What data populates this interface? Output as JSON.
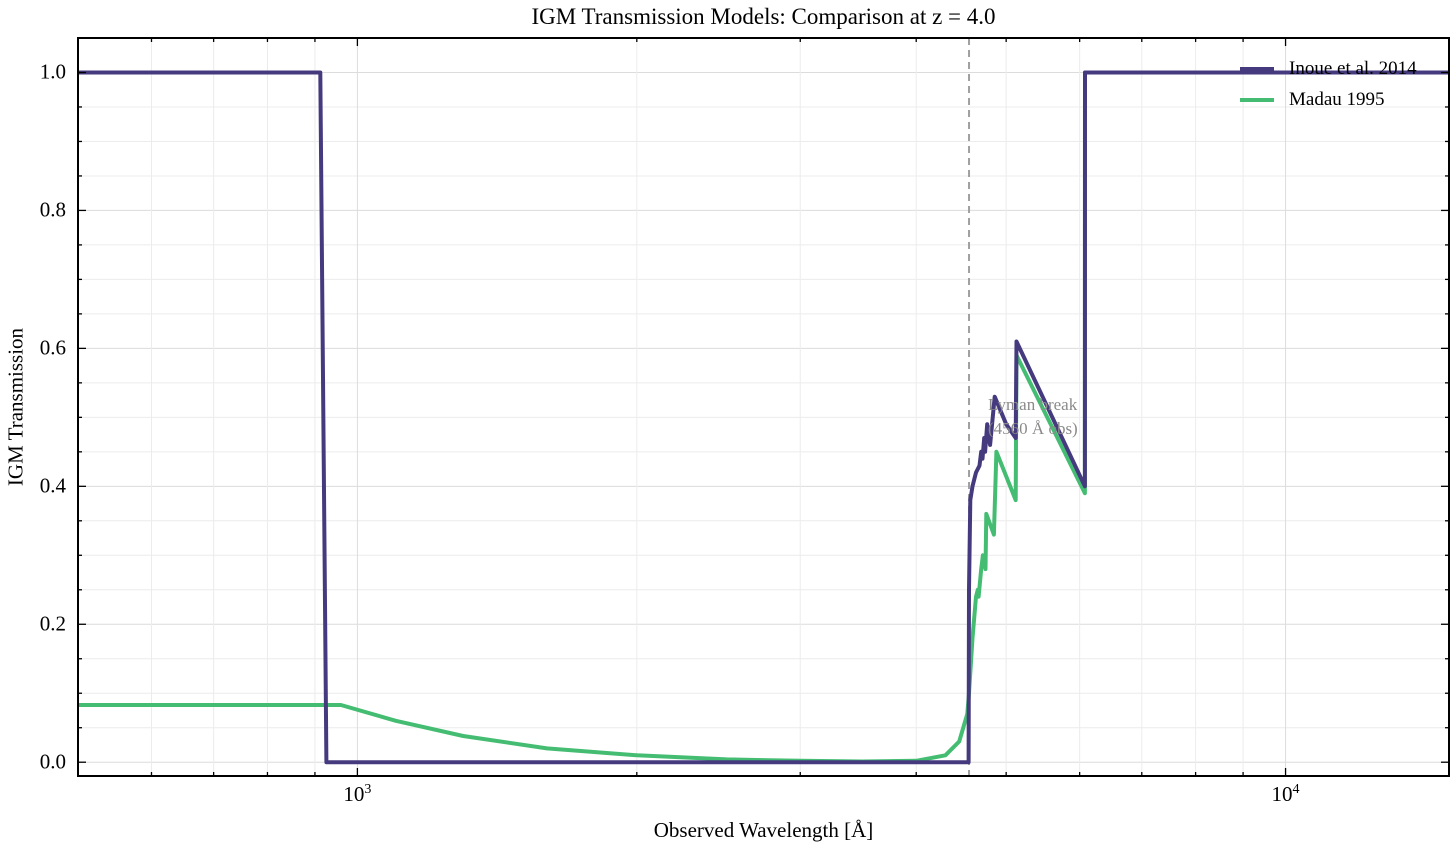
{
  "chart_data": {
    "type": "line",
    "title": "IGM Transmission Models: Comparison at z = 4.0",
    "xlabel": "Observed Wavelength [Å]",
    "ylabel": "IGM Transmission",
    "xscale": "log",
    "xlim": [
      500,
      15000
    ],
    "ylim": [
      -0.02,
      1.05
    ],
    "yticks": [
      0.0,
      0.2,
      0.4,
      0.6,
      0.8,
      1.0
    ],
    "ytick_labels": [
      "0.0",
      "0.2",
      "0.4",
      "0.6",
      "0.8",
      "1.0"
    ],
    "xticks": [
      1000,
      10000
    ],
    "xtick_labels": [
      {
        "base": "10",
        "exp": "3"
      },
      {
        "base": "10",
        "exp": "4"
      }
    ],
    "grid": true,
    "legend_position": "top-right",
    "vline": {
      "x": 4560,
      "style": "dashed",
      "color": "#a0a0a0"
    },
    "annotation": {
      "lines": [
        "Lyman break",
        "(4560 Å obs)"
      ],
      "x": 4560
    },
    "series": [
      {
        "name": "Inoue et al. 2014",
        "color": "#463a7f",
        "points": [
          [
            500,
            1.0
          ],
          [
            912,
            1.0
          ],
          [
            926,
            0.0
          ],
          [
            4555,
            0.0
          ],
          [
            4560,
            0.25
          ],
          [
            4575,
            0.38
          ],
          [
            4600,
            0.4
          ],
          [
            4640,
            0.42
          ],
          [
            4680,
            0.43
          ],
          [
            4700,
            0.45
          ],
          [
            4715,
            0.44
          ],
          [
            4735,
            0.47
          ],
          [
            4745,
            0.45
          ],
          [
            4770,
            0.49
          ],
          [
            4790,
            0.47
          ],
          [
            4805,
            0.46
          ],
          [
            4860,
            0.53
          ],
          [
            5000,
            0.49
          ],
          [
            5120,
            0.47
          ],
          [
            5130,
            0.61
          ],
          [
            6078,
            0.4
          ],
          [
            6080,
            1.0
          ],
          [
            15000,
            1.0
          ]
        ]
      },
      {
        "name": "Madau 1995",
        "color": "#44bd72",
        "points": [
          [
            500,
            0.083
          ],
          [
            960,
            0.083
          ],
          [
            1100,
            0.06
          ],
          [
            1300,
            0.038
          ],
          [
            1600,
            0.02
          ],
          [
            2000,
            0.01
          ],
          [
            2500,
            0.004
          ],
          [
            3000,
            0.002
          ],
          [
            3500,
            0.001
          ],
          [
            4000,
            0.002
          ],
          [
            4300,
            0.01
          ],
          [
            4450,
            0.03
          ],
          [
            4540,
            0.07
          ],
          [
            4560,
            0.1
          ],
          [
            4600,
            0.18
          ],
          [
            4640,
            0.24
          ],
          [
            4660,
            0.25
          ],
          [
            4670,
            0.24
          ],
          [
            4700,
            0.28
          ],
          [
            4720,
            0.3
          ],
          [
            4750,
            0.28
          ],
          [
            4760,
            0.36
          ],
          [
            4850,
            0.33
          ],
          [
            4880,
            0.45
          ],
          [
            5120,
            0.38
          ],
          [
            5130,
            0.59
          ],
          [
            6078,
            0.39
          ],
          [
            6080,
            1.0
          ],
          [
            15000,
            1.0
          ]
        ]
      }
    ]
  }
}
